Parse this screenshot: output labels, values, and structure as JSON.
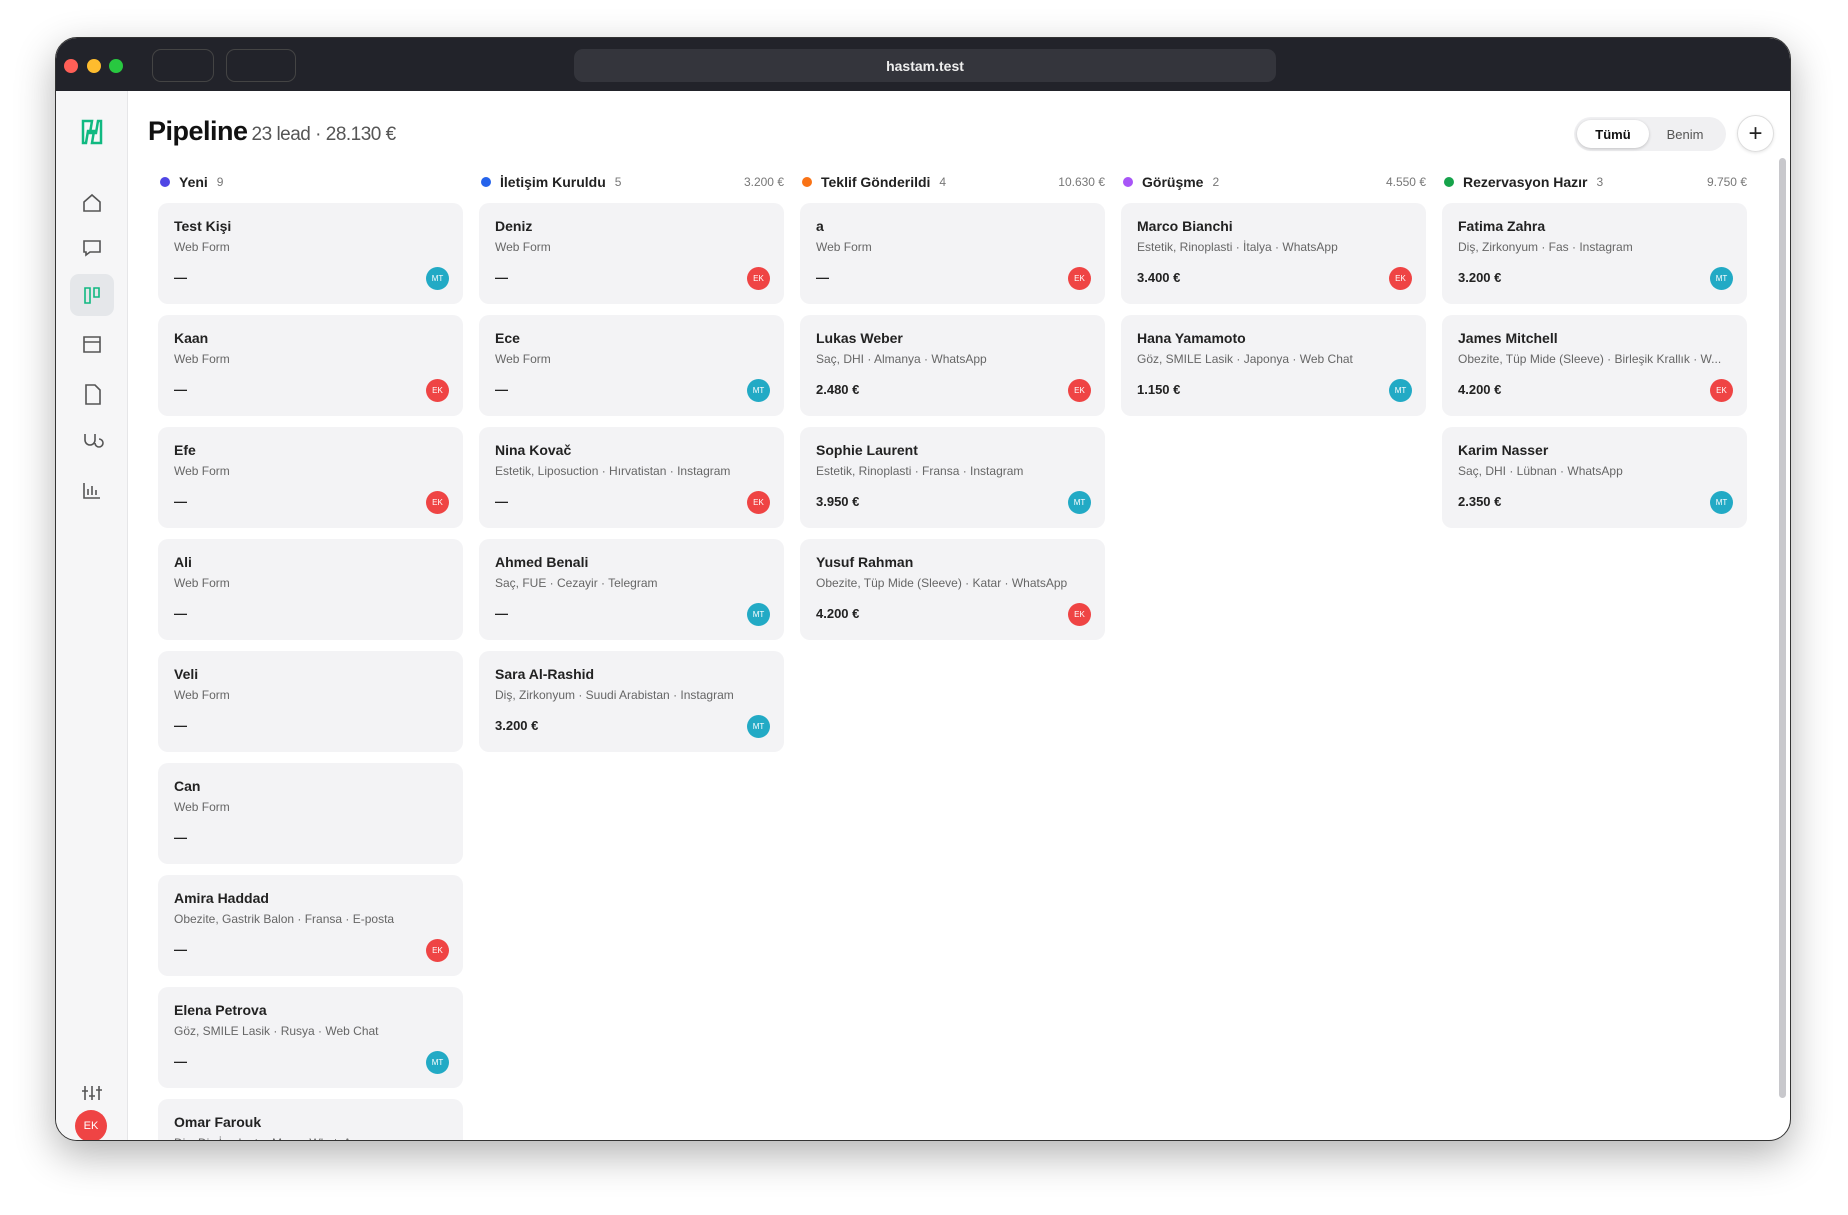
{
  "browser": {
    "url": "hastam.test"
  },
  "header": {
    "title": "Pipeline",
    "summary": "23 lead · 28.130 €"
  },
  "filters": [
    "Tümü",
    "Benim"
  ],
  "user_avatar": "EK",
  "columns": [
    {
      "name": "Yeni",
      "count": 9,
      "color": "#4f46e5",
      "cards": [
        {
          "name": "Test Kişi",
          "detail": "Web Form",
          "amount": "—",
          "avatar": "MT"
        },
        {
          "name": "Kaan",
          "detail": "Web Form",
          "amount": "—",
          "avatar": "EK"
        },
        {
          "name": "Efe",
          "detail": "Web Form",
          "amount": "—",
          "avatar": "EK"
        },
        {
          "name": "Ali",
          "detail": "Web Form",
          "amount": "—"
        },
        {
          "name": "Veli",
          "detail": "Web Form",
          "amount": "—"
        },
        {
          "name": "Can",
          "detail": "Web Form",
          "amount": "—"
        },
        {
          "name": "Amira Haddad",
          "detail": "Obezite, Gastrik Balon · Fransa · E-posta",
          "amount": "—",
          "avatar": "EK"
        },
        {
          "name": "Elena Petrova",
          "detail": "Göz, SMILE Lasik · Rusya · Web Chat",
          "amount": "—",
          "avatar": "MT"
        },
        {
          "name": "Omar Farouk",
          "detail": "Diş, Diş İmplantı · Mısır · WhatsApp"
        }
      ]
    },
    {
      "name": "İletişim Kuruldu",
      "count": 5,
      "total": "3.200 €",
      "color": "#2563eb",
      "cards": [
        {
          "name": "Deniz",
          "detail": "Web Form",
          "amount": "—",
          "avatar": "EK"
        },
        {
          "name": "Ece",
          "detail": "Web Form",
          "amount": "—",
          "avatar": "MT"
        },
        {
          "name": "Nina Kovač",
          "detail": "Estetik, Liposuction · Hırvatistan · Instagram",
          "amount": "—",
          "avatar": "EK"
        },
        {
          "name": "Ahmed Benali",
          "detail": "Saç, FUE · Cezayir · Telegram",
          "amount": "—",
          "avatar": "MT"
        },
        {
          "name": "Sara Al-Rashid",
          "detail": "Diş, Zirkonyum · Suudi Arabistan · Instagram",
          "amount": "3.200 €",
          "avatar": "MT"
        }
      ]
    },
    {
      "name": "Teklif Gönderildi",
      "count": 4,
      "total": "10.630 €",
      "color": "#f97316",
      "cards": [
        {
          "name": "a",
          "detail": "Web Form",
          "amount": "—",
          "avatar": "EK"
        },
        {
          "name": "Lukas Weber",
          "detail": "Saç, DHI · Almanya · WhatsApp",
          "amount": "2.480 €",
          "avatar": "EK"
        },
        {
          "name": "Sophie Laurent",
          "detail": "Estetik, Rinoplasti · Fransa · Instagram",
          "amount": "3.950 €",
          "avatar": "MT"
        },
        {
          "name": "Yusuf Rahman",
          "detail": "Obezite, Tüp Mide (Sleeve) · Katar · WhatsApp",
          "amount": "4.200 €",
          "avatar": "EK"
        }
      ]
    },
    {
      "name": "Görüşme",
      "count": 2,
      "total": "4.550 €",
      "color": "#a855f7",
      "cards": [
        {
          "name": "Marco Bianchi",
          "detail": "Estetik, Rinoplasti · İtalya · WhatsApp",
          "amount": "3.400 €",
          "avatar": "EK"
        },
        {
          "name": "Hana Yamamoto",
          "detail": "Göz, SMILE Lasik · Japonya · Web Chat",
          "amount": "1.150 €",
          "avatar": "MT"
        }
      ]
    },
    {
      "name": "Rezervasyon Hazır",
      "count": 3,
      "total": "9.750 €",
      "color": "#16a34a",
      "cards": [
        {
          "name": "Fatima Zahra",
          "detail": "Diş, Zirkonyum · Fas · Instagram",
          "amount": "3.200 €",
          "avatar": "MT"
        },
        {
          "name": "James Mitchell",
          "detail": "Obezite, Tüp Mide (Sleeve) · Birleşik Krallık · W...",
          "amount": "4.200 €",
          "avatar": "EK"
        },
        {
          "name": "Karim Nasser",
          "detail": "Saç, DHI · Lübnan · WhatsApp",
          "amount": "2.350 €",
          "avatar": "MT"
        }
      ]
    }
  ]
}
